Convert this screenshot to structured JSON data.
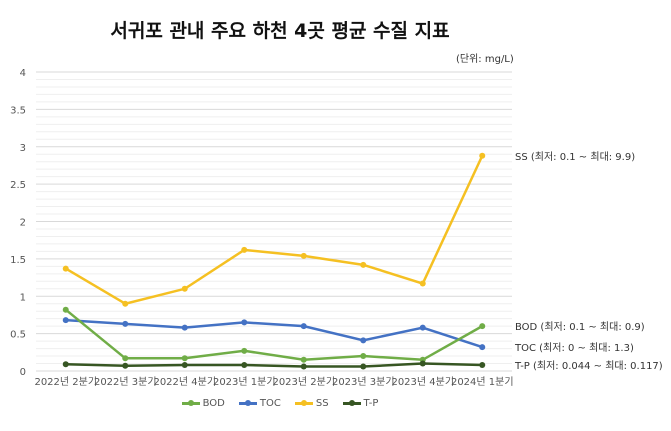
{
  "chart_data": {
    "type": "line",
    "title": "서귀포 관내 주요 하천 4곳 평균 수질 지표",
    "unit_note": "(단위: mg/L)",
    "categories": [
      "2022년 2분기",
      "2022년 3분기",
      "2022년 4분기",
      "2023년 1분기",
      "2023년 2분기",
      "2023년 3분기",
      "2023년 4분기",
      "2024년 1분기"
    ],
    "ylim": [
      0,
      4
    ],
    "yticks": [
      0,
      0.5,
      1,
      1.5,
      2,
      2.5,
      3,
      3.5,
      4
    ],
    "ytick_labels": [
      "0",
      "0.5",
      "1",
      "1.5",
      "2",
      "2.5",
      "3",
      "3.5",
      "4"
    ],
    "grid": true,
    "legend": "bottom",
    "series": [
      {
        "name": "BOD",
        "color": "#70ad47",
        "values": [
          0.82,
          0.17,
          0.17,
          0.27,
          0.15,
          0.2,
          0.15,
          0.6
        ],
        "annotation": "BOD (최저: 0.1 ~ 최대: 0.9)"
      },
      {
        "name": "TOC",
        "color": "#4472c4",
        "values": [
          0.68,
          0.63,
          0.58,
          0.65,
          0.6,
          0.41,
          0.58,
          0.32
        ],
        "annotation": "TOC (최저: 0 ~ 최대: 1.3)"
      },
      {
        "name": "SS",
        "color": "#f5c022",
        "values": [
          1.37,
          0.9,
          1.1,
          1.62,
          1.54,
          1.42,
          1.17,
          2.88
        ],
        "annotation": "SS (최저: 0.1 ~ 최대: 9.9)"
      },
      {
        "name": "T-P",
        "color": "#375623",
        "values": [
          0.09,
          0.07,
          0.08,
          0.08,
          0.06,
          0.06,
          0.1,
          0.08
        ],
        "annotation": "T-P (최저: 0.044 ~ 최대: 0.117)"
      }
    ]
  }
}
